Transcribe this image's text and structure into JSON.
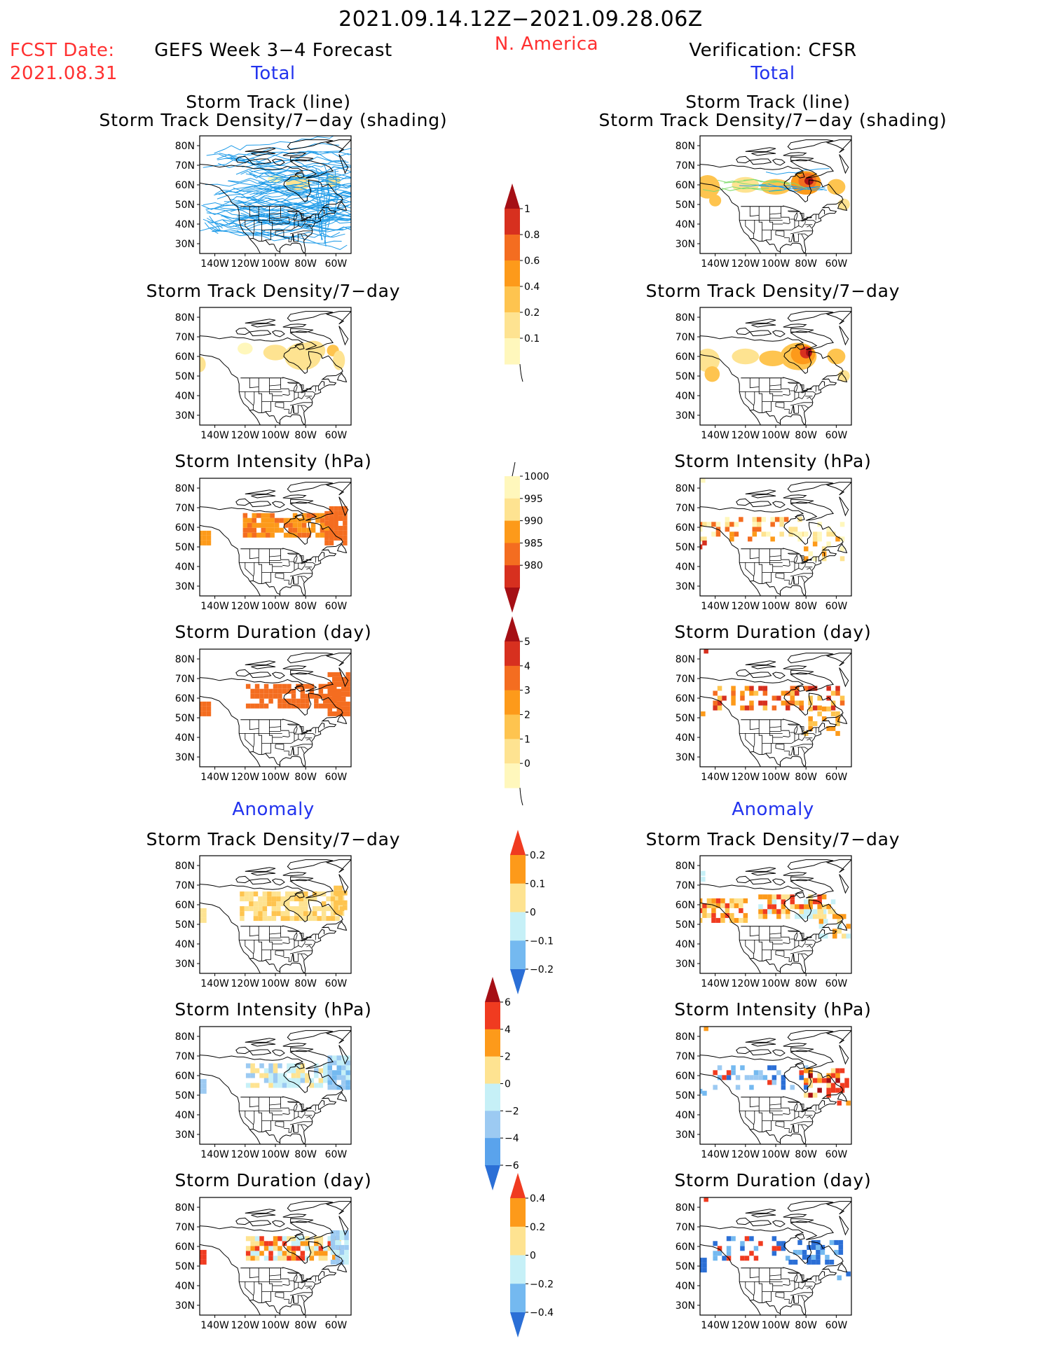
{
  "header": {
    "period": "2021.09.14.12Z−2021.09.28.06Z",
    "region": "N. America",
    "fcst_label": "FCST Date:",
    "fcst_date": "2021.08.31",
    "left_title": "GEFS Week 3−4 Forecast",
    "right_title": "Verification: CFSR",
    "total_left": "Total",
    "total_right": "Total",
    "anomaly_left": "Anomaly",
    "anomaly_right": "Anomaly"
  },
  "panel_titles": {
    "track_line": "Storm Track (line)",
    "track_shading": "Storm Track Density/7−day (shading)",
    "density": "Storm Track Density/7−day",
    "intensity": "Storm Intensity (hPa)",
    "duration": "Storm Duration (day)"
  },
  "map_axes": {
    "lat_labels": [
      "80N",
      "70N",
      "60N",
      "50N",
      "40N",
      "30N"
    ],
    "lon_labels": [
      "140W",
      "120W",
      "100W",
      "80W",
      "60W"
    ]
  },
  "colorbars": {
    "density_total": {
      "labels": [
        "1",
        "0.8",
        "0.6",
        "0.4",
        "0.2",
        "0.1"
      ],
      "colors": [
        "#a50f15",
        "#d7301f",
        "#f46d20",
        "#fd9a1a",
        "#fec44f",
        "#fee391",
        "#fff7bc"
      ]
    },
    "intensity_total": {
      "labels": [
        "1000",
        "995",
        "990",
        "985",
        "980"
      ],
      "colors": [
        "#fff7bc",
        "#fee391",
        "#fd9a1a",
        "#f46d20",
        "#d7301f",
        "#a50f15"
      ]
    },
    "duration_total": {
      "labels": [
        "5",
        "4",
        "3",
        "2",
        "1",
        "0"
      ],
      "colors": [
        "#a50f15",
        "#d7301f",
        "#f46d20",
        "#fd9a1a",
        "#fec44f",
        "#fee391",
        "#fff7bc"
      ]
    },
    "density_anom": {
      "labels": [
        "0.2",
        "0.1",
        "0",
        "−0.1",
        "−0.2"
      ],
      "colors": [
        "#f03b20",
        "#fd9a1a",
        "#fee391",
        "#c6f0f7",
        "#74b9f0",
        "#2b6fd6"
      ]
    },
    "intensity_anom": {
      "labels": [
        "6",
        "4",
        "2",
        "0",
        "−2",
        "−4",
        "−6"
      ],
      "colors": [
        "#a50f15",
        "#f03b20",
        "#fd9a1a",
        "#fee391",
        "#c6f0f7",
        "#9ccaf2",
        "#5aa3ec",
        "#2b6fd6"
      ]
    },
    "duration_anom": {
      "labels": [
        "0.4",
        "0.2",
        "0",
        "−0.2",
        "−0.4"
      ],
      "colors": [
        "#f03b20",
        "#fd9a1a",
        "#fee391",
        "#c6f0f7",
        "#74b9f0",
        "#2b6fd6"
      ]
    }
  },
  "colors": {
    "track_line": "#1e9be8",
    "track_line_obs": "#7fdc6e",
    "map_outline": "#000000"
  }
}
